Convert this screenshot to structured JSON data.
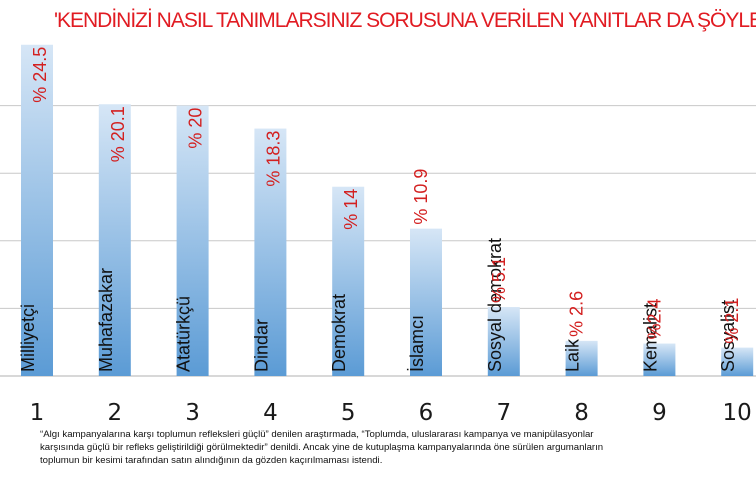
{
  "chart_data": {
    "type": "bar",
    "title": "'KENDİNİZİ NASIL TANIMLARSINIZ SORUSUNA VERİLEN YANITLAR DA ŞÖYLE",
    "x": [
      "1",
      "2",
      "3",
      "4",
      "5",
      "6",
      "7",
      "8",
      "9",
      "10"
    ],
    "categories": [
      "Milliyetçi",
      "Muhafazakar",
      "Atatürkçü",
      "Dindar",
      "Demokrat",
      "İslamcı",
      "Sosyal demokrat",
      "Laik",
      "Kemalist",
      "Sosyalist"
    ],
    "values": [
      24.5,
      20.1,
      20,
      18.3,
      14,
      10.9,
      5.1,
      2.6,
      2.4,
      2.1
    ],
    "value_labels": [
      "% 24.5",
      "% 20.1",
      "% 20",
      "% 18.3",
      "% 14",
      "% 10.9",
      "% 5.1",
      "% 2.6",
      "%2.4",
      "% 2.1"
    ],
    "xlabel": "",
    "ylabel": "",
    "ylim": [
      0,
      25
    ],
    "grid": true,
    "colors": {
      "bar": "#5b9bd5",
      "bar_light": "#d6e6f6",
      "value_label": "#d32020",
      "title": "#e11b22",
      "grid": "#c8c8c8"
    }
  },
  "caption": "“Algı kampanyalarına karşı toplumun refleksleri güçlü” denilen araştırmada, “Toplumda, uluslararası kampanya ve manipülasyonlar karşısında güçlü bir refleks geliştirildiği görülmektedir” denildi. Ancak yine de kutuplaşma kampanyalarında öne sürülen argumanların toplumun bir kesimi tarafından satın alındığının da gözden kaçırılmaması istendi."
}
